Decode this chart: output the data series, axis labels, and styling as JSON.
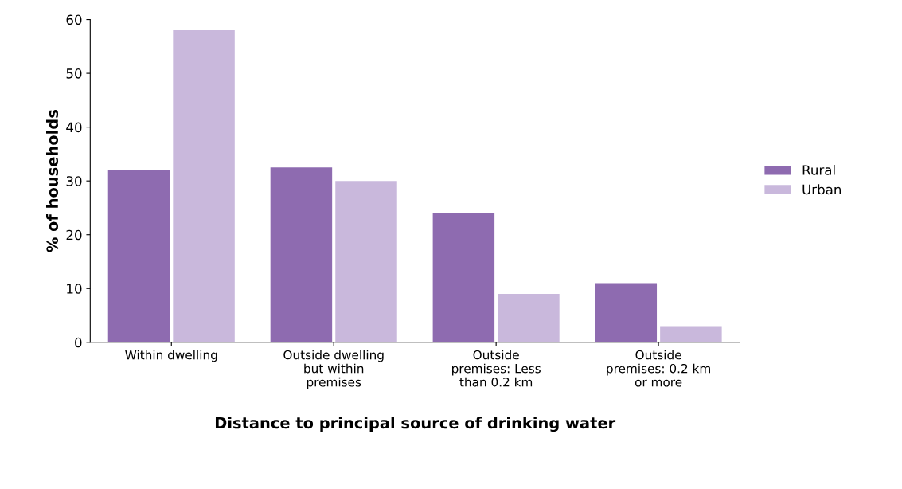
{
  "chart_data": {
    "type": "bar",
    "xlabel": "Distance to principal source of drinking water",
    "ylabel": "% of households",
    "categories": [
      "Within dwelling",
      "Outside dwelling\nbut within\npremises",
      "Outside\npremises: Less\nthan 0.2 km",
      "Outside\npremises: 0.2 km\nor more"
    ],
    "series": [
      {
        "name": "Rural",
        "color": "#8e6bb0",
        "values": [
          32,
          32.5,
          24,
          11
        ]
      },
      {
        "name": "Urban",
        "color": "#c9b8dc",
        "values": [
          58,
          30,
          9,
          3
        ]
      }
    ],
    "ylim": [
      0,
      60
    ],
    "yticks": [
      0,
      10,
      20,
      30,
      40,
      50,
      60
    ],
    "grid": false,
    "legend": "right"
  }
}
